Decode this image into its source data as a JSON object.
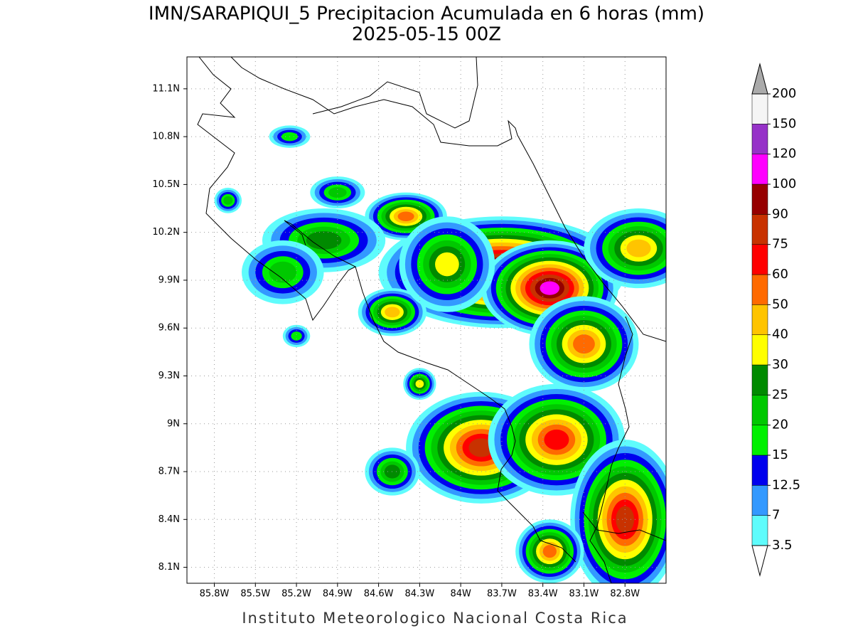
{
  "title": "IMN/SARAPIQUI_5 Precipitacion Acumulada en 6 horas (mm)",
  "subtitle": "2025-05-15 00Z",
  "footer": "Instituto Meteorologico Nacional Costa Rica",
  "map": {
    "lonlim": [
      -86.0,
      -82.5
    ],
    "latlim": [
      8.0,
      11.3
    ],
    "lon_ticks": [
      {
        "value": -85.8,
        "label": "85.8W"
      },
      {
        "value": -85.5,
        "label": "85.5W"
      },
      {
        "value": -85.2,
        "label": "85.2W"
      },
      {
        "value": -84.9,
        "label": "84.9W"
      },
      {
        "value": -84.6,
        "label": "84.6W"
      },
      {
        "value": -84.3,
        "label": "84.3W"
      },
      {
        "value": -84.0,
        "label": "84W"
      },
      {
        "value": -83.7,
        "label": "83.7W"
      },
      {
        "value": -83.4,
        "label": "83.4W"
      },
      {
        "value": -83.1,
        "label": "83.1W"
      },
      {
        "value": -82.8,
        "label": "82.8W"
      }
    ],
    "lat_ticks": [
      {
        "value": 8.1,
        "label": "8.1N"
      },
      {
        "value": 8.4,
        "label": "8.4N"
      },
      {
        "value": 8.7,
        "label": "8.7N"
      },
      {
        "value": 9.0,
        "label": "9N"
      },
      {
        "value": 9.3,
        "label": "9.3N"
      },
      {
        "value": 9.6,
        "label": "9.6N"
      },
      {
        "value": 9.9,
        "label": "9.9N"
      },
      {
        "value": 10.2,
        "label": "10.2N"
      },
      {
        "value": 10.5,
        "label": "10.5N"
      },
      {
        "value": 10.8,
        "label": "10.8N"
      },
      {
        "value": 11.1,
        "label": "11.1N"
      }
    ],
    "grid": true
  },
  "colorbar": {
    "levels": [
      3.5,
      7,
      12.5,
      15,
      20,
      25,
      30,
      40,
      50,
      60,
      75,
      90,
      100,
      120,
      150,
      200
    ],
    "colors": [
      "#ffffff",
      "#5ffcfc",
      "#3399ff",
      "#0000ee",
      "#00f000",
      "#00c800",
      "#008a00",
      "#ffff00",
      "#ffc400",
      "#ff6a00",
      "#ff0000",
      "#c83200",
      "#960000",
      "#ff00ff",
      "#9632c8",
      "#f5f5f5",
      "#aaaaaa"
    ]
  }
}
